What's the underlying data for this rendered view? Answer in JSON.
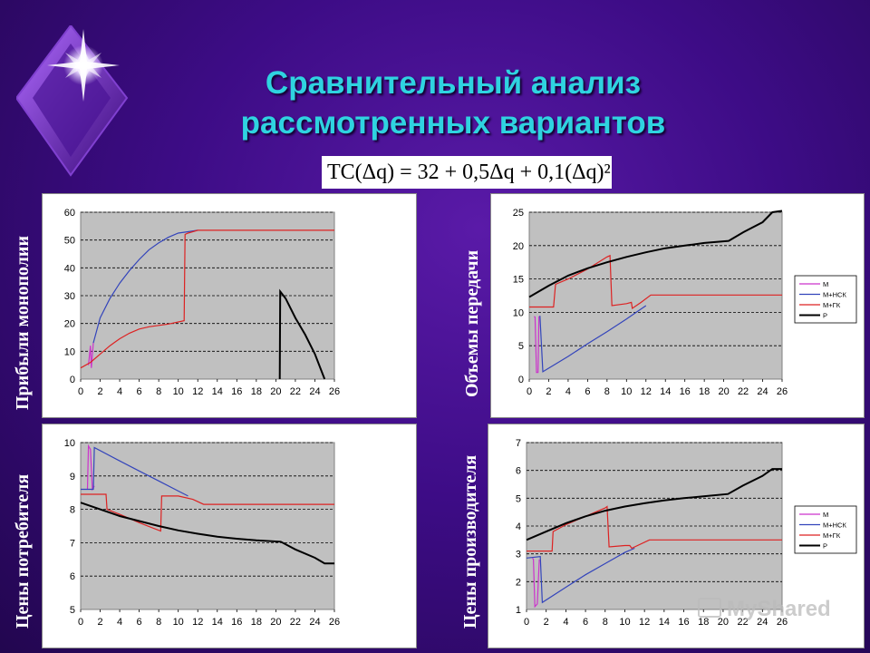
{
  "title_line1": "Сравнительный анализ",
  "title_line2": "рассмотренных вариантов",
  "formula": "TC(Δq) = 32 + 0,5Δq + 0,1(Δq)²",
  "watermark": "MyShared",
  "colors": {
    "background": "#3d0c86",
    "title": "#2fd3e0",
    "plot_area": "#c0c0c0",
    "M": "#cc33cc",
    "M+NSK": "#3344bb",
    "M+GK": "#dd2222",
    "P": "#000000"
  },
  "chart_data": [
    {
      "id": "tl",
      "type": "line",
      "ylabel": "Прибыли монополии",
      "x_ticks": [
        "0",
        "2",
        "4",
        "6",
        "8",
        "10",
        "12",
        "14",
        "16",
        "18",
        "20",
        "22",
        "24",
        "26"
      ],
      "xlim": [
        0,
        26
      ],
      "ylim": [
        0,
        60
      ],
      "y_ticks": [
        "0",
        "10",
        "20",
        "30",
        "40",
        "50",
        "60"
      ],
      "legend": [],
      "series": [
        {
          "key": "M",
          "points": [
            [
              0.8,
              5
            ],
            [
              1,
              12
            ],
            [
              1.1,
              4
            ],
            [
              1.3,
              13
            ]
          ]
        },
        {
          "key": "M+NSK",
          "points": [
            [
              1.3,
              13
            ],
            [
              2,
              22
            ],
            [
              3,
              29
            ],
            [
              4,
              34.5
            ],
            [
              5,
              39
            ],
            [
              6,
              43
            ],
            [
              7,
              46.5
            ],
            [
              8,
              49
            ],
            [
              9,
              51
            ],
            [
              10,
              52.5
            ],
            [
              11,
              53
            ],
            [
              12,
              53.5
            ]
          ]
        },
        {
          "key": "M+GK",
          "points": [
            [
              0,
              4
            ],
            [
              1,
              6
            ],
            [
              2,
              9
            ],
            [
              3,
              12
            ],
            [
              4,
              14.5
            ],
            [
              5,
              16.5
            ],
            [
              6,
              18
            ],
            [
              7,
              18.8
            ],
            [
              8,
              19.3
            ],
            [
              9,
              19.8
            ],
            [
              10.6,
              21
            ],
            [
              10.7,
              52
            ],
            [
              11,
              52.5
            ],
            [
              12,
              53.5
            ],
            [
              14,
              53.5
            ],
            [
              20,
              53.5
            ],
            [
              26,
              53.5
            ]
          ]
        },
        {
          "key": "P",
          "points": [
            [
              20.4,
              0
            ],
            [
              20.45,
              31.5
            ],
            [
              21,
              29
            ],
            [
              22,
              22
            ],
            [
              23,
              16
            ],
            [
              24,
              9
            ],
            [
              25,
              0
            ]
          ]
        }
      ]
    },
    {
      "id": "tr",
      "type": "line",
      "ylabel": "Объемы передачи",
      "x_ticks": [
        "0",
        "2",
        "4",
        "6",
        "8",
        "10",
        "12",
        "14",
        "16",
        "18",
        "20",
        "22",
        "24",
        "26"
      ],
      "xlim": [
        0,
        26
      ],
      "ylim": [
        0,
        25
      ],
      "y_ticks": [
        "0",
        "5",
        "10",
        "15",
        "20",
        "25"
      ],
      "legend": [
        "М",
        "М+НСК",
        "М+ГК",
        "Р"
      ],
      "series": [
        {
          "key": "M",
          "points": [
            [
              0.5,
              9.4
            ],
            [
              0.6,
              9.3
            ],
            [
              0.75,
              1
            ],
            [
              0.9,
              1
            ],
            [
              1,
              9.4
            ]
          ]
        },
        {
          "key": "M+NSK",
          "points": [
            [
              1.1,
              9.5
            ],
            [
              1.4,
              1.1
            ],
            [
              4,
              3.4
            ],
            [
              6,
              5.3
            ],
            [
              8,
              7.1
            ],
            [
              10,
              9
            ],
            [
              11,
              10
            ],
            [
              12,
              11
            ]
          ]
        },
        {
          "key": "M+GK",
          "points": [
            [
              0,
              10.8
            ],
            [
              2.5,
              10.8
            ],
            [
              2.7,
              14.2
            ],
            [
              4,
              15
            ],
            [
              6,
              16.5
            ],
            [
              8,
              18.3
            ],
            [
              8.3,
              18.5
            ],
            [
              8.5,
              11
            ],
            [
              10,
              11.3
            ],
            [
              10.5,
              11.5
            ],
            [
              10.6,
              10.6
            ],
            [
              11.5,
              11.5
            ],
            [
              12.5,
              12.6
            ],
            [
              14,
              12.6
            ],
            [
              20,
              12.6
            ],
            [
              26,
              12.6
            ]
          ]
        },
        {
          "key": "P",
          "points": [
            [
              0,
              12.3
            ],
            [
              2,
              14
            ],
            [
              4,
              15.5
            ],
            [
              6,
              16.6
            ],
            [
              8,
              17.5
            ],
            [
              10,
              18.3
            ],
            [
              12,
              19
            ],
            [
              14,
              19.6
            ],
            [
              16,
              20
            ],
            [
              18,
              20.4
            ],
            [
              20.5,
              20.7
            ],
            [
              22,
              22
            ],
            [
              24,
              23.5
            ],
            [
              25,
              25
            ],
            [
              26,
              25.2
            ]
          ]
        }
      ]
    },
    {
      "id": "bl",
      "type": "line",
      "ylabel": "Цены потребителя",
      "x_ticks": [
        "0",
        "2",
        "4",
        "6",
        "8",
        "10",
        "12",
        "14",
        "16",
        "18",
        "20",
        "22",
        "24",
        "26"
      ],
      "xlim": [
        0,
        26
      ],
      "ylim": [
        5,
        10
      ],
      "y_ticks": [
        "5",
        "6",
        "7",
        "8",
        "9",
        "10"
      ],
      "legend": [],
      "series": [
        {
          "key": "M",
          "points": [
            [
              0.7,
              8.6
            ],
            [
              0.8,
              9.9
            ],
            [
              1,
              9.8
            ],
            [
              1.2,
              8.6
            ],
            [
              1.4,
              8.7
            ]
          ]
        },
        {
          "key": "M+NSK",
          "points": [
            [
              0,
              8.6
            ],
            [
              1.3,
              8.6
            ],
            [
              1.4,
              9.85
            ],
            [
              4,
              9.45
            ],
            [
              6,
              9.15
            ],
            [
              8,
              8.85
            ],
            [
              10,
              8.55
            ],
            [
              11,
              8.4
            ]
          ]
        },
        {
          "key": "M+GK",
          "points": [
            [
              0,
              8.45
            ],
            [
              2.6,
              8.45
            ],
            [
              2.7,
              8.0
            ],
            [
              4,
              7.85
            ],
            [
              6,
              7.6
            ],
            [
              8.2,
              7.35
            ],
            [
              8.3,
              8.4
            ],
            [
              10,
              8.4
            ],
            [
              11.5,
              8.3
            ],
            [
              12.6,
              8.15
            ],
            [
              14,
              8.15
            ],
            [
              20,
              8.15
            ],
            [
              26,
              8.15
            ]
          ]
        },
        {
          "key": "P",
          "points": [
            [
              0,
              8.2
            ],
            [
              2,
              8.0
            ],
            [
              4,
              7.8
            ],
            [
              6,
              7.65
            ],
            [
              8,
              7.5
            ],
            [
              10,
              7.37
            ],
            [
              12,
              7.27
            ],
            [
              14,
              7.18
            ],
            [
              16,
              7.12
            ],
            [
              18,
              7.07
            ],
            [
              20.5,
              7.03
            ],
            [
              22,
              6.8
            ],
            [
              24,
              6.55
            ],
            [
              25,
              6.38
            ],
            [
              26,
              6.38
            ]
          ]
        }
      ]
    },
    {
      "id": "br",
      "type": "line",
      "ylabel": "Цены производителя",
      "x_ticks": [
        "0",
        "2",
        "4",
        "6",
        "8",
        "10",
        "12",
        "14",
        "16",
        "18",
        "20",
        "22",
        "24",
        "26"
      ],
      "xlim": [
        0,
        26
      ],
      "ylim": [
        1,
        7
      ],
      "y_ticks": [
        "1",
        "2",
        "3",
        "4",
        "5",
        "6",
        "7"
      ],
      "legend": [
        "М",
        "М+НСК",
        "М+ГК",
        "Р"
      ],
      "series": [
        {
          "key": "M",
          "points": [
            [
              0.6,
              2.85
            ],
            [
              0.7,
              2.8
            ],
            [
              0.85,
              1.1
            ],
            [
              1.1,
              1.2
            ],
            [
              1.3,
              2.8
            ]
          ]
        },
        {
          "key": "M+NSK",
          "points": [
            [
              0,
              2.85
            ],
            [
              1.4,
              2.9
            ],
            [
              1.6,
              1.25
            ],
            [
              4,
              1.8
            ],
            [
              6,
              2.25
            ],
            [
              8,
              2.65
            ],
            [
              10,
              3.05
            ],
            [
              11,
              3.2
            ]
          ]
        },
        {
          "key": "M+GK",
          "points": [
            [
              0,
              3.1
            ],
            [
              2.6,
              3.1
            ],
            [
              2.7,
              3.8
            ],
            [
              4,
              4.05
            ],
            [
              6,
              4.35
            ],
            [
              8,
              4.65
            ],
            [
              8.2,
              4.7
            ],
            [
              8.4,
              3.25
            ],
            [
              10,
              3.3
            ],
            [
              10.5,
              3.3
            ],
            [
              10.7,
              3.2
            ],
            [
              12.5,
              3.5
            ],
            [
              14,
              3.5
            ],
            [
              20,
              3.5
            ],
            [
              26,
              3.5
            ]
          ]
        },
        {
          "key": "P",
          "points": [
            [
              0,
              3.5
            ],
            [
              2,
              3.8
            ],
            [
              4,
              4.1
            ],
            [
              6,
              4.35
            ],
            [
              8,
              4.55
            ],
            [
              10,
              4.7
            ],
            [
              12,
              4.82
            ],
            [
              14,
              4.92
            ],
            [
              16,
              5.0
            ],
            [
              18,
              5.07
            ],
            [
              20.5,
              5.15
            ],
            [
              22,
              5.45
            ],
            [
              24,
              5.8
            ],
            [
              25,
              6.05
            ],
            [
              26,
              6.05
            ]
          ]
        }
      ]
    }
  ]
}
